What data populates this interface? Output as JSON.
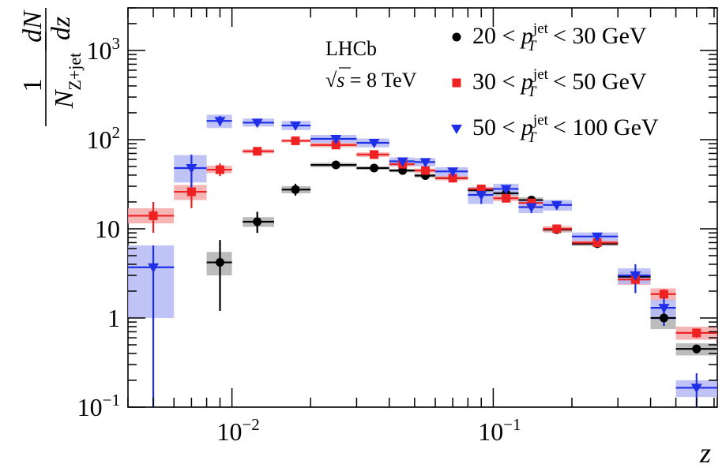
{
  "chart_data": {
    "type": "scatter",
    "title": "",
    "xlabel": "z",
    "ylabel": {
      "frac1_num": "1",
      "frac1_den_main": "N",
      "frac1_den_sub": "Z+jet",
      "frac2_num": "dN",
      "frac2_den": "dz"
    },
    "x_scale": "log",
    "y_scale": "log",
    "xlim": [
      0.004,
      0.72
    ],
    "ylim": [
      0.1,
      3000
    ],
    "x_ticks": [
      {
        "value": 0.01,
        "base": "10",
        "exp": "−2"
      },
      {
        "value": 0.1,
        "base": "10",
        "exp": "−1"
      }
    ],
    "y_ticks": [
      {
        "value": 0.1,
        "label": "10",
        "sup": "−1"
      },
      {
        "value": 1,
        "label": "1",
        "sup": ""
      },
      {
        "value": 10,
        "label": "10",
        "sup": ""
      },
      {
        "value": 100,
        "label": "10",
        "sup": "2"
      },
      {
        "value": 1000,
        "label": "10",
        "sup": "3"
      }
    ],
    "annotation": {
      "experiment": "LHCb",
      "energy_prefix": "√s",
      "energy_value": " = 8 TeV"
    },
    "legend_position": "top-right",
    "series": [
      {
        "name": "20 < pT jet < 30 GeV",
        "legend": {
          "pre": "20 < ",
          "p": "p",
          "sub": "T",
          "sup": "jet",
          "post": " < 30 GeV"
        },
        "color": "#000000",
        "band_color": "#b0b0b0",
        "marker": "circle",
        "points": [
          {
            "x": 0.009,
            "xlo": 0.008,
            "xhi": 0.01,
            "y": 4.2,
            "ylo": 1.2,
            "yhi": 7.5,
            "blo": 3.0,
            "bhi": 5.5
          },
          {
            "x": 0.0125,
            "xlo": 0.011,
            "xhi": 0.0145,
            "y": 12,
            "ylo": 9,
            "yhi": 15.5,
            "blo": 10.5,
            "bhi": 13.5
          },
          {
            "x": 0.0175,
            "xlo": 0.0155,
            "xhi": 0.02,
            "y": 27.5,
            "ylo": 23.5,
            "yhi": 32,
            "blo": 25,
            "bhi": 30
          },
          {
            "x": 0.025,
            "xlo": 0.02,
            "xhi": 0.03,
            "y": 52,
            "ylo": 50,
            "yhi": 54.5,
            "blo": 49,
            "bhi": 55
          },
          {
            "x": 0.035,
            "xlo": 0.03,
            "xhi": 0.04,
            "y": 48,
            "ylo": 46.5,
            "yhi": 50,
            "blo": 46,
            "bhi": 50
          },
          {
            "x": 0.045,
            "xlo": 0.04,
            "xhi": 0.05,
            "y": 45,
            "ylo": 43.5,
            "yhi": 46.5,
            "blo": 43,
            "bhi": 47
          },
          {
            "x": 0.055,
            "xlo": 0.05,
            "xhi": 0.06,
            "y": 39.5,
            "ylo": 38,
            "yhi": 41,
            "blo": 37.5,
            "bhi": 41.5
          },
          {
            "x": 0.07,
            "xlo": 0.06,
            "xhi": 0.08,
            "y": 37,
            "ylo": 35.5,
            "yhi": 38.5,
            "blo": 35,
            "bhi": 39
          },
          {
            "x": 0.09,
            "xlo": 0.08,
            "xhi": 0.1,
            "y": 27,
            "ylo": 26,
            "yhi": 28,
            "blo": 25.5,
            "bhi": 28.5
          },
          {
            "x": 0.112,
            "xlo": 0.1,
            "xhi": 0.125,
            "y": 25,
            "ylo": 24,
            "yhi": 26,
            "blo": 23.5,
            "bhi": 26.5
          },
          {
            "x": 0.14,
            "xlo": 0.125,
            "xhi": 0.155,
            "y": 21,
            "ylo": 20,
            "yhi": 22,
            "blo": 19.5,
            "bhi": 22.5
          },
          {
            "x": 0.175,
            "xlo": 0.155,
            "xhi": 0.2,
            "y": 9.8,
            "ylo": 9.3,
            "yhi": 10.3,
            "blo": 9.1,
            "bhi": 10.5
          },
          {
            "x": 0.25,
            "xlo": 0.2,
            "xhi": 0.3,
            "y": 6.8,
            "ylo": 6.5,
            "yhi": 7.1,
            "blo": 6.4,
            "bhi": 7.2
          },
          {
            "x": 0.35,
            "xlo": 0.3,
            "xhi": 0.4,
            "y": 2.9,
            "ylo": 2.6,
            "yhi": 3.2,
            "blo": 2.5,
            "bhi": 3.3
          },
          {
            "x": 0.45,
            "xlo": 0.4,
            "xhi": 0.5,
            "y": 1.0,
            "ylo": 0.82,
            "yhi": 1.2,
            "blo": 0.75,
            "bhi": 1.3
          },
          {
            "x": 0.6,
            "xlo": 0.5,
            "xhi": 0.72,
            "y": 0.45,
            "ylo": 0.4,
            "yhi": 0.5,
            "blo": 0.38,
            "bhi": 0.52
          }
        ]
      },
      {
        "name": "30 < pT jet < 50 GeV",
        "legend": {
          "pre": "30 < ",
          "p": "p",
          "sub": "T",
          "sup": "jet",
          "post": " < 50 GeV"
        },
        "color": "#ee2222",
        "band_color": "#f4a8a8",
        "marker": "square",
        "points": [
          {
            "x": 0.005,
            "xlo": 0.004,
            "xhi": 0.006,
            "y": 14,
            "ylo": 9,
            "yhi": 20,
            "blo": 11.5,
            "bhi": 17
          },
          {
            "x": 0.007,
            "xlo": 0.006,
            "xhi": 0.008,
            "y": 26,
            "ylo": 17,
            "yhi": 35,
            "blo": 21,
            "bhi": 31
          },
          {
            "x": 0.009,
            "xlo": 0.008,
            "xhi": 0.01,
            "y": 46,
            "ylo": 39,
            "yhi": 54,
            "blo": 42,
            "bhi": 51
          },
          {
            "x": 0.0125,
            "xlo": 0.011,
            "xhi": 0.0145,
            "y": 74,
            "ylo": 69,
            "yhi": 79,
            "blo": 70,
            "bhi": 78
          },
          {
            "x": 0.0175,
            "xlo": 0.0155,
            "xhi": 0.02,
            "y": 97,
            "ylo": 92,
            "yhi": 102,
            "blo": 93,
            "bhi": 101
          },
          {
            "x": 0.025,
            "xlo": 0.02,
            "xhi": 0.03,
            "y": 87,
            "ylo": 83,
            "yhi": 91,
            "blo": 82,
            "bhi": 92
          },
          {
            "x": 0.035,
            "xlo": 0.03,
            "xhi": 0.04,
            "y": 68,
            "ylo": 65,
            "yhi": 71,
            "blo": 64,
            "bhi": 72
          },
          {
            "x": 0.045,
            "xlo": 0.04,
            "xhi": 0.05,
            "y": 53,
            "ylo": 50.5,
            "yhi": 55.5,
            "blo": 50,
            "bhi": 56
          },
          {
            "x": 0.055,
            "xlo": 0.05,
            "xhi": 0.06,
            "y": 45,
            "ylo": 43,
            "yhi": 47,
            "blo": 42.5,
            "bhi": 47.5
          },
          {
            "x": 0.07,
            "xlo": 0.06,
            "xhi": 0.08,
            "y": 37,
            "ylo": 35.5,
            "yhi": 38.5,
            "blo": 35,
            "bhi": 39
          },
          {
            "x": 0.09,
            "xlo": 0.08,
            "xhi": 0.1,
            "y": 28,
            "ylo": 27,
            "yhi": 29,
            "blo": 26.5,
            "bhi": 29.5
          },
          {
            "x": 0.112,
            "xlo": 0.1,
            "xhi": 0.125,
            "y": 22,
            "ylo": 21,
            "yhi": 23,
            "blo": 20.5,
            "bhi": 23.5
          },
          {
            "x": 0.14,
            "xlo": 0.125,
            "xhi": 0.155,
            "y": 19.5,
            "ylo": 18.5,
            "yhi": 20.5,
            "blo": 18.2,
            "bhi": 20.8
          },
          {
            "x": 0.175,
            "xlo": 0.155,
            "xhi": 0.2,
            "y": 10,
            "ylo": 9.5,
            "yhi": 10.5,
            "blo": 9.3,
            "bhi": 10.7
          },
          {
            "x": 0.25,
            "xlo": 0.2,
            "xhi": 0.3,
            "y": 7.0,
            "ylo": 6.7,
            "yhi": 7.3,
            "blo": 6.6,
            "bhi": 7.4
          },
          {
            "x": 0.35,
            "xlo": 0.3,
            "xhi": 0.4,
            "y": 2.7,
            "ylo": 2.4,
            "yhi": 3.0,
            "blo": 2.35,
            "bhi": 3.1
          },
          {
            "x": 0.45,
            "xlo": 0.4,
            "xhi": 0.5,
            "y": 1.85,
            "ylo": 1.6,
            "yhi": 2.1,
            "blo": 1.55,
            "bhi": 2.15
          },
          {
            "x": 0.6,
            "xlo": 0.5,
            "xhi": 0.72,
            "y": 0.68,
            "ylo": 0.6,
            "yhi": 0.76,
            "blo": 0.57,
            "bhi": 0.8
          }
        ]
      },
      {
        "name": "50 < pT jet < 100 GeV",
        "legend": {
          "pre": "50 < ",
          "p": "p",
          "sub": "T",
          "sup": "jet",
          "post": " < 100 GeV"
        },
        "color": "#1f2fe8",
        "band_color": "#b4b9f4",
        "marker": "triangle-down",
        "points": [
          {
            "x": 0.005,
            "xlo": 0.004,
            "xhi": 0.006,
            "y": 3.7,
            "ylo": 0.1,
            "yhi": 6.5,
            "blo": 1.0,
            "bhi": 6.5
          },
          {
            "x": 0.007,
            "xlo": 0.006,
            "xhi": 0.008,
            "y": 48,
            "ylo": 29,
            "yhi": 68,
            "blo": 33,
            "bhi": 67
          },
          {
            "x": 0.009,
            "xlo": 0.008,
            "xhi": 0.01,
            "y": 162,
            "ylo": 142,
            "yhi": 185,
            "blo": 135,
            "bhi": 190
          },
          {
            "x": 0.0125,
            "xlo": 0.011,
            "xhi": 0.0145,
            "y": 155,
            "ylo": 148,
            "yhi": 163,
            "blo": 140,
            "bhi": 172
          },
          {
            "x": 0.0175,
            "xlo": 0.0155,
            "xhi": 0.02,
            "y": 144,
            "ylo": 135,
            "yhi": 153,
            "blo": 128,
            "bhi": 162
          },
          {
            "x": 0.025,
            "xlo": 0.02,
            "xhi": 0.03,
            "y": 102,
            "ylo": 96,
            "yhi": 108,
            "blo": 92,
            "bhi": 113
          },
          {
            "x": 0.035,
            "xlo": 0.03,
            "xhi": 0.04,
            "y": 92,
            "ylo": 86,
            "yhi": 98,
            "blo": 82,
            "bhi": 103
          },
          {
            "x": 0.045,
            "xlo": 0.04,
            "xhi": 0.05,
            "y": 57,
            "ylo": 53,
            "yhi": 61,
            "blo": 51,
            "bhi": 63
          },
          {
            "x": 0.055,
            "xlo": 0.05,
            "xhi": 0.06,
            "y": 56,
            "ylo": 52,
            "yhi": 60,
            "blo": 50,
            "bhi": 62
          },
          {
            "x": 0.07,
            "xlo": 0.06,
            "xhi": 0.08,
            "y": 44,
            "ylo": 40,
            "yhi": 48,
            "blo": 39,
            "bhi": 49
          },
          {
            "x": 0.09,
            "xlo": 0.08,
            "xhi": 0.1,
            "y": 24,
            "ylo": 19,
            "yhi": 29,
            "blo": 19,
            "bhi": 29
          },
          {
            "x": 0.112,
            "xlo": 0.1,
            "xhi": 0.125,
            "y": 28,
            "ylo": 25,
            "yhi": 31,
            "blo": 24,
            "bhi": 32
          },
          {
            "x": 0.14,
            "xlo": 0.125,
            "xhi": 0.155,
            "y": 17.5,
            "ylo": 15,
            "yhi": 20,
            "blo": 15,
            "bhi": 20.5
          },
          {
            "x": 0.175,
            "xlo": 0.155,
            "xhi": 0.2,
            "y": 18.5,
            "ylo": 16.5,
            "yhi": 20.5,
            "blo": 16,
            "bhi": 21
          },
          {
            "x": 0.25,
            "xlo": 0.2,
            "xhi": 0.3,
            "y": 8.2,
            "ylo": 7.6,
            "yhi": 8.8,
            "blo": 7.3,
            "bhi": 9.1
          },
          {
            "x": 0.35,
            "xlo": 0.3,
            "xhi": 0.4,
            "y": 3.0,
            "ylo": 1.9,
            "yhi": 4.0,
            "blo": 2.4,
            "bhi": 3.6
          },
          {
            "x": 0.45,
            "xlo": 0.4,
            "xhi": 0.5,
            "y": 1.3,
            "ylo": 0.82,
            "yhi": 1.8,
            "blo": 0.95,
            "bhi": 1.6
          },
          {
            "x": 0.6,
            "xlo": 0.5,
            "xhi": 0.72,
            "y": 0.165,
            "ylo": 0.1,
            "yhi": 0.24,
            "blo": 0.13,
            "bhi": 0.2
          }
        ]
      }
    ]
  }
}
